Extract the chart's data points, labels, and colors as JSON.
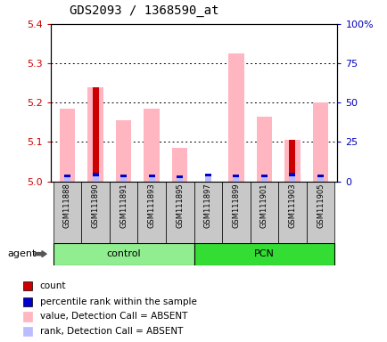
{
  "title": "GDS2093 / 1368590_at",
  "samples": [
    "GSM111888",
    "GSM111890",
    "GSM111891",
    "GSM111893",
    "GSM111895",
    "GSM111897",
    "GSM111899",
    "GSM111901",
    "GSM111903",
    "GSM111905"
  ],
  "groups": [
    {
      "name": "control",
      "indices": [
        0,
        4
      ],
      "color": "#90EE90"
    },
    {
      "name": "PCN",
      "indices": [
        5,
        9
      ],
      "color": "#33DD33"
    }
  ],
  "ylim_left": [
    5.0,
    5.4
  ],
  "ylim_right": [
    0,
    100
  ],
  "yticks_left": [
    5.0,
    5.1,
    5.2,
    5.3,
    5.4
  ],
  "yticks_right": [
    0,
    25,
    50,
    75,
    100
  ],
  "pink_bar_heights": [
    5.185,
    5.24,
    5.155,
    5.185,
    5.085,
    5.0,
    5.325,
    5.165,
    5.105,
    5.2
  ],
  "red_bar_heights": [
    0.0,
    5.24,
    0.0,
    0.0,
    0.0,
    0.0,
    0.0,
    0.0,
    5.105,
    0.0
  ],
  "blue_bar_heights": [
    0.006,
    0.009,
    0.006,
    0.006,
    0.005,
    0.007,
    0.007,
    0.006,
    0.009,
    0.006
  ],
  "light_blue_bar_heights": [
    0.01,
    0.012,
    0.01,
    0.01,
    0.009,
    0.012,
    0.01,
    0.01,
    0.012,
    0.01
  ],
  "bar_width": 0.55,
  "narrow_bar_width": 0.22,
  "left_tick_color": "#CC0000",
  "right_tick_color": "#0000BB",
  "bar_color_red": "#CC0000",
  "bar_color_pink": "#FFB6C1",
  "bar_color_blue": "#0000CC",
  "bar_color_light_blue": "#BBBBFF",
  "xlabel_gray_bg": "#C8C8C8",
  "agent_label": "agent",
  "legend_items": [
    {
      "color": "#CC0000",
      "label": "count"
    },
    {
      "color": "#0000CC",
      "label": "percentile rank within the sample"
    },
    {
      "color": "#FFB6C1",
      "label": "value, Detection Call = ABSENT"
    },
    {
      "color": "#BBBBFF",
      "label": "rank, Detection Call = ABSENT"
    }
  ]
}
